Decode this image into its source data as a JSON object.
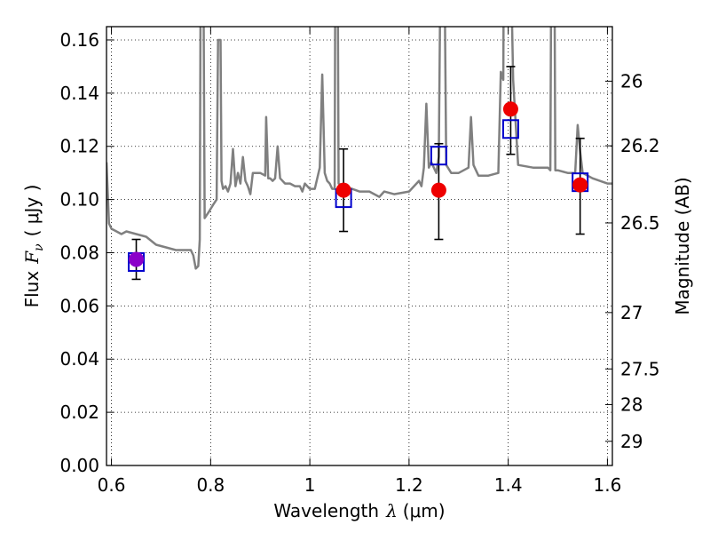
{
  "chart_data": {
    "type": "scatter",
    "xlabel": "Wavelength",
    "xlabel_symbol": "λ",
    "xlabel_unit": "(μm)",
    "ylabel": "Flux",
    "ylabel_symbol": "F",
    "ylabel_subscript": "ν",
    "ylabel_unit": "( μJy )",
    "y2label": "Magnitude (AB)",
    "xlim": [
      0.59,
      1.61
    ],
    "ylim": [
      0.0,
      0.165
    ],
    "grid": true,
    "x_ticks": [
      0.6,
      0.8,
      1.0,
      1.2,
      1.4,
      1.6
    ],
    "x_tick_labels": [
      "0.6",
      "0.8",
      "1",
      "1.2",
      "1.4",
      "1.6"
    ],
    "y_ticks": [
      0.0,
      0.02,
      0.04,
      0.06,
      0.08,
      0.1,
      0.12,
      0.14,
      0.16
    ],
    "y_tick_labels": [
      "0.00",
      "0.02",
      "0.04",
      "0.06",
      "0.08",
      "0.10",
      "0.12",
      "0.14",
      "0.16"
    ],
    "y2_ticks": [
      {
        "label": "26",
        "flux": 0.1445
      },
      {
        "label": "26.2",
        "flux": 0.1202
      },
      {
        "label": "26.5",
        "flux": 0.0912
      },
      {
        "label": "27",
        "flux": 0.0575
      },
      {
        "label": "27.5",
        "flux": 0.0363
      },
      {
        "label": "28",
        "flux": 0.0229
      },
      {
        "label": "29",
        "flux": 0.0091
      }
    ],
    "series": [
      {
        "kind": "line",
        "color": "#808080",
        "points": [
          [
            0.59,
            0.114
          ],
          [
            0.595,
            0.091
          ],
          [
            0.6,
            0.089
          ],
          [
            0.61,
            0.088
          ],
          [
            0.62,
            0.087
          ],
          [
            0.63,
            0.088
          ],
          [
            0.65,
            0.087
          ],
          [
            0.67,
            0.086
          ],
          [
            0.69,
            0.083
          ],
          [
            0.71,
            0.082
          ],
          [
            0.73,
            0.081
          ],
          [
            0.75,
            0.081
          ],
          [
            0.76,
            0.081
          ],
          [
            0.765,
            0.079
          ],
          [
            0.77,
            0.074
          ],
          [
            0.775,
            0.075
          ],
          [
            0.778,
            0.085
          ],
          [
            0.78,
            0.2
          ],
          [
            0.785,
            0.2
          ],
          [
            0.788,
            0.093
          ],
          [
            0.795,
            0.095
          ],
          [
            0.805,
            0.098
          ],
          [
            0.812,
            0.1
          ],
          [
            0.815,
            0.16
          ],
          [
            0.82,
            0.16
          ],
          [
            0.822,
            0.107
          ],
          [
            0.825,
            0.104
          ],
          [
            0.83,
            0.105
          ],
          [
            0.835,
            0.103
          ],
          [
            0.84,
            0.106
          ],
          [
            0.845,
            0.119
          ],
          [
            0.85,
            0.105
          ],
          [
            0.855,
            0.11
          ],
          [
            0.86,
            0.106
          ],
          [
            0.865,
            0.116
          ],
          [
            0.87,
            0.107
          ],
          [
            0.875,
            0.105
          ],
          [
            0.88,
            0.102
          ],
          [
            0.885,
            0.11
          ],
          [
            0.9,
            0.11
          ],
          [
            0.91,
            0.109
          ],
          [
            0.912,
            0.131
          ],
          [
            0.916,
            0.108
          ],
          [
            0.92,
            0.108
          ],
          [
            0.925,
            0.107
          ],
          [
            0.93,
            0.108
          ],
          [
            0.935,
            0.12
          ],
          [
            0.94,
            0.108
          ],
          [
            0.95,
            0.106
          ],
          [
            0.96,
            0.106
          ],
          [
            0.97,
            0.105
          ],
          [
            0.98,
            0.105
          ],
          [
            0.985,
            0.103
          ],
          [
            0.99,
            0.106
          ],
          [
            1.0,
            0.104
          ],
          [
            1.01,
            0.104
          ],
          [
            1.02,
            0.112
          ],
          [
            1.025,
            0.147
          ],
          [
            1.03,
            0.11
          ],
          [
            1.035,
            0.107
          ],
          [
            1.04,
            0.106
          ],
          [
            1.045,
            0.104
          ],
          [
            1.05,
            0.104
          ],
          [
            1.052,
            0.24
          ],
          [
            1.055,
            0.24
          ],
          [
            1.058,
            0.106
          ],
          [
            1.07,
            0.105
          ],
          [
            1.1,
            0.103
          ],
          [
            1.12,
            0.103
          ],
          [
            1.14,
            0.101
          ],
          [
            1.15,
            0.103
          ],
          [
            1.17,
            0.102
          ],
          [
            1.2,
            0.103
          ],
          [
            1.21,
            0.105
          ],
          [
            1.22,
            0.107
          ],
          [
            1.225,
            0.105
          ],
          [
            1.23,
            0.112
          ],
          [
            1.235,
            0.136
          ],
          [
            1.24,
            0.112
          ],
          [
            1.245,
            0.114
          ],
          [
            1.25,
            0.112
          ],
          [
            1.255,
            0.11
          ],
          [
            1.26,
            0.116
          ],
          [
            1.265,
            0.22
          ],
          [
            1.27,
            0.22
          ],
          [
            1.275,
            0.113
          ],
          [
            1.285,
            0.11
          ],
          [
            1.3,
            0.11
          ],
          [
            1.31,
            0.111
          ],
          [
            1.32,
            0.112
          ],
          [
            1.325,
            0.131
          ],
          [
            1.33,
            0.113
          ],
          [
            1.34,
            0.109
          ],
          [
            1.36,
            0.109
          ],
          [
            1.38,
            0.11
          ],
          [
            1.385,
            0.148
          ],
          [
            1.39,
            0.145
          ],
          [
            1.392,
            0.24
          ],
          [
            1.4,
            0.24
          ],
          [
            1.41,
            0.145
          ],
          [
            1.42,
            0.113
          ],
          [
            1.45,
            0.112
          ],
          [
            1.47,
            0.112
          ],
          [
            1.48,
            0.112
          ],
          [
            1.485,
            0.111
          ],
          [
            1.487,
            0.2
          ],
          [
            1.493,
            0.2
          ],
          [
            1.495,
            0.111
          ],
          [
            1.5,
            0.111
          ],
          [
            1.52,
            0.11
          ],
          [
            1.535,
            0.11
          ],
          [
            1.54,
            0.128
          ],
          [
            1.545,
            0.118
          ],
          [
            1.55,
            0.11
          ],
          [
            1.57,
            0.108
          ],
          [
            1.6,
            0.106
          ],
          [
            1.61,
            0.106
          ]
        ]
      },
      {
        "kind": "errorbar",
        "color": "#000000",
        "points": [
          {
            "x": 0.65,
            "low": 0.07,
            "high": 0.085
          },
          {
            "x": 1.068,
            "low": 0.088,
            "high": 0.119
          },
          {
            "x": 1.26,
            "low": 0.085,
            "high": 0.121
          },
          {
            "x": 1.405,
            "low": 0.117,
            "high": 0.15
          },
          {
            "x": 1.545,
            "low": 0.087,
            "high": 0.123
          }
        ]
      },
      {
        "kind": "markers",
        "marker": "square-open",
        "color": "#0000cc",
        "points": [
          [
            0.65,
            0.0765
          ],
          [
            1.068,
            0.1005
          ],
          [
            1.26,
            0.1165
          ],
          [
            1.405,
            0.1265
          ],
          [
            1.545,
            0.1065
          ]
        ]
      },
      {
        "kind": "markers",
        "marker": "circle-filled",
        "colors": [
          "#8b00c9",
          "#ee0000",
          "#ee0000",
          "#ee0000",
          "#ee0000"
        ],
        "points": [
          [
            0.65,
            0.0775
          ],
          [
            1.068,
            0.1035
          ],
          [
            1.26,
            0.1035
          ],
          [
            1.405,
            0.134
          ],
          [
            1.545,
            0.1055
          ]
        ]
      }
    ]
  }
}
